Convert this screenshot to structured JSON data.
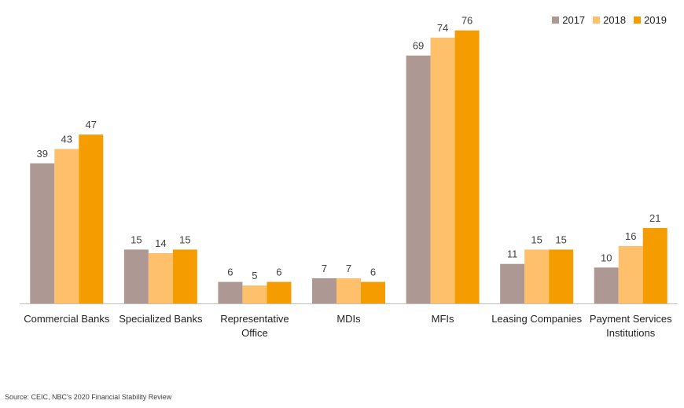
{
  "chart_data": {
    "type": "bar",
    "categories": [
      [
        "Commercial Banks"
      ],
      [
        "Specialized Banks"
      ],
      [
        "Representative",
        "Office"
      ],
      [
        "MDIs"
      ],
      [
        "MFIs"
      ],
      [
        "Leasing Companies"
      ],
      [
        "Payment Services",
        "Institutions"
      ]
    ],
    "series": [
      {
        "name": "2017",
        "color": "#ad9894",
        "values": [
          39,
          15,
          6,
          7,
          69,
          11,
          10
        ]
      },
      {
        "name": "2018",
        "color": "#fec06b",
        "values": [
          43,
          14,
          5,
          7,
          74,
          15,
          16
        ]
      },
      {
        "name": "2019",
        "color": "#f59c00",
        "values": [
          47,
          15,
          6,
          6,
          76,
          15,
          21
        ]
      }
    ],
    "ylim": [
      0,
      80
    ],
    "grid": false,
    "legend_position": "top-right",
    "data_labels": true
  },
  "source": "Source: CEIC, NBC's 2020 Financial Stability Review"
}
